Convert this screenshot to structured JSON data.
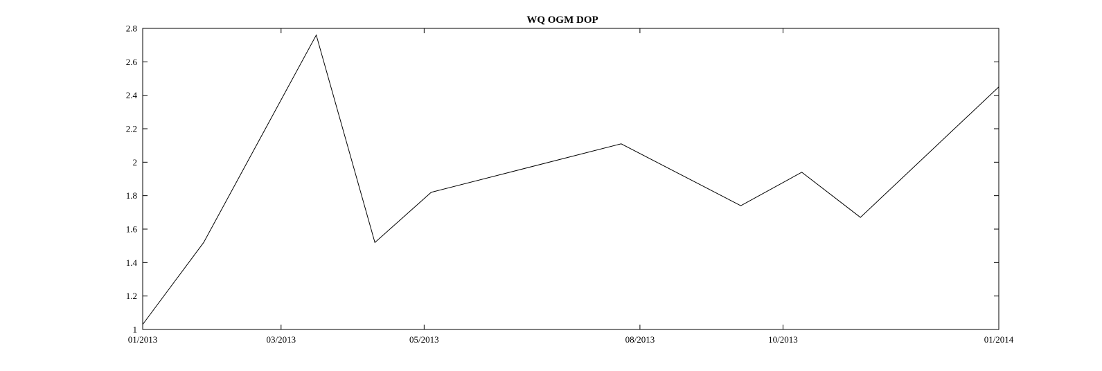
{
  "chart_data": {
    "type": "line",
    "title": "WQ OGM DOP",
    "xlabel": "",
    "ylabel": "",
    "xlim": [
      "2013-01-01",
      "2014-01-01"
    ],
    "ylim": [
      1,
      2.8
    ],
    "grid": false,
    "x_ticks": [
      {
        "date": "2013-01-01",
        "label": "01/2013"
      },
      {
        "date": "2013-03-01",
        "label": "03/2013"
      },
      {
        "date": "2013-05-01",
        "label": "05/2013"
      },
      {
        "date": "2013-08-01",
        "label": "08/2013"
      },
      {
        "date": "2013-10-01",
        "label": "10/2013"
      },
      {
        "date": "2014-01-01",
        "label": "01/2014"
      }
    ],
    "y_ticks": [
      {
        "value": 1,
        "label": "1"
      },
      {
        "value": 1.2,
        "label": "1.2"
      },
      {
        "value": 1.4,
        "label": "1.4"
      },
      {
        "value": 1.6,
        "label": "1.6"
      },
      {
        "value": 1.8,
        "label": "1.8"
      },
      {
        "value": 2,
        "label": "2"
      },
      {
        "value": 2.2,
        "label": "2.2"
      },
      {
        "value": 2.4,
        "label": "2.4"
      },
      {
        "value": 2.6,
        "label": "2.6"
      },
      {
        "value": 2.8,
        "label": "2.8"
      }
    ],
    "series": [
      {
        "color": "#000000",
        "x": [
          "2013-01-01",
          "2013-01-27",
          "2013-03-16",
          "2013-04-10",
          "2013-05-04",
          "2013-07-24",
          "2013-09-13",
          "2013-10-09",
          "2013-11-03",
          "2014-01-01"
        ],
        "y": [
          1.03,
          1.52,
          2.76,
          1.52,
          1.82,
          2.11,
          1.74,
          1.94,
          1.67,
          2.45
        ]
      }
    ]
  }
}
